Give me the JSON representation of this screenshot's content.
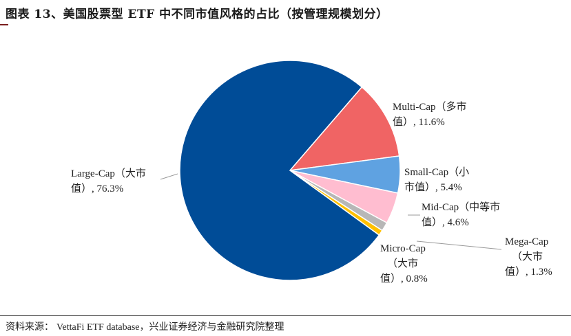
{
  "title": "图表 13、美国股票型 ETF 中不同市值风格的占比（按管理规模划分）",
  "source": {
    "label": "资料来源：",
    "text": "VettaFi ETF database，兴业证券经济与金融研究院整理"
  },
  "chart_data": {
    "type": "pie",
    "title": "美国股票型 ETF 中不同市值风格的占比（按管理规模划分）",
    "unit": "%",
    "slices": [
      {
        "name": "Multi-Cap",
        "label_lines": [
          "Multi-Cap（多市",
          "值）, 11.6%"
        ],
        "value": 11.6,
        "color": "#F06464"
      },
      {
        "name": "Small-Cap",
        "label_lines": [
          "Small-Cap（小",
          "市值）, 5.4%"
        ],
        "value": 5.4,
        "color": "#5FA2E1"
      },
      {
        "name": "Mid-Cap",
        "label_lines": [
          "Mid-Cap（中等市",
          "值）, 4.6%"
        ],
        "value": 4.6,
        "color": "#FFBDD0"
      },
      {
        "name": "Mega-Cap",
        "label_lines": [
          "Mega-Cap",
          "（大市",
          "值）, 1.3%"
        ],
        "value": 1.3,
        "color": "#B7B7B7"
      },
      {
        "name": "Micro-Cap",
        "label_lines": [
          "Micro-Cap",
          "（大市",
          "值）, 0.8%"
        ],
        "value": 0.8,
        "color": "#FFC000"
      },
      {
        "name": "Large-Cap",
        "label_lines": [
          "Large-Cap（大市",
          "值）, 76.3%"
        ],
        "value": 76.3,
        "color": "#004C97"
      }
    ]
  }
}
